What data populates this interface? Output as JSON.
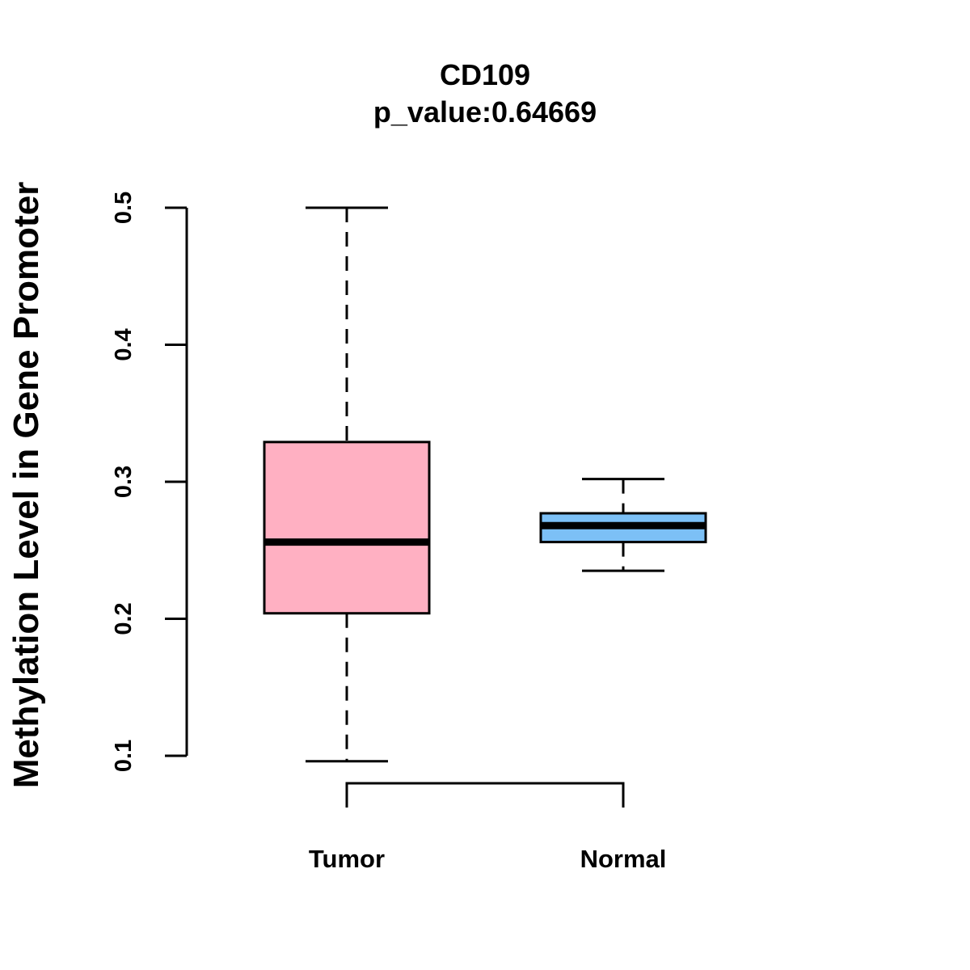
{
  "chart_data": {
    "type": "boxplot",
    "title": "CD109",
    "subtitle": "p_value:0.64669",
    "xlabel": "",
    "ylabel": "Methylation Level in Gene Promoter",
    "ylim": [
      0.1,
      0.5
    ],
    "yticks": [
      {
        "value": 0.1,
        "label": "0.1"
      },
      {
        "value": 0.2,
        "label": "0.2"
      },
      {
        "value": 0.3,
        "label": "0.3"
      },
      {
        "value": 0.4,
        "label": "0.4"
      },
      {
        "value": 0.5,
        "label": "0.5"
      }
    ],
    "categories": [
      "Tumor",
      "Normal"
    ],
    "series": [
      {
        "name": "Tumor",
        "min": 0.096,
        "q1": 0.204,
        "median": 0.256,
        "q3": 0.329,
        "max": 0.5,
        "color": "#ffb0c2"
      },
      {
        "name": "Normal",
        "min": 0.235,
        "q1": 0.256,
        "median": 0.268,
        "q3": 0.277,
        "max": 0.302,
        "color": "#7cc0f6"
      }
    ],
    "comparison_bracket": [
      "Tumor",
      "Normal"
    ]
  }
}
